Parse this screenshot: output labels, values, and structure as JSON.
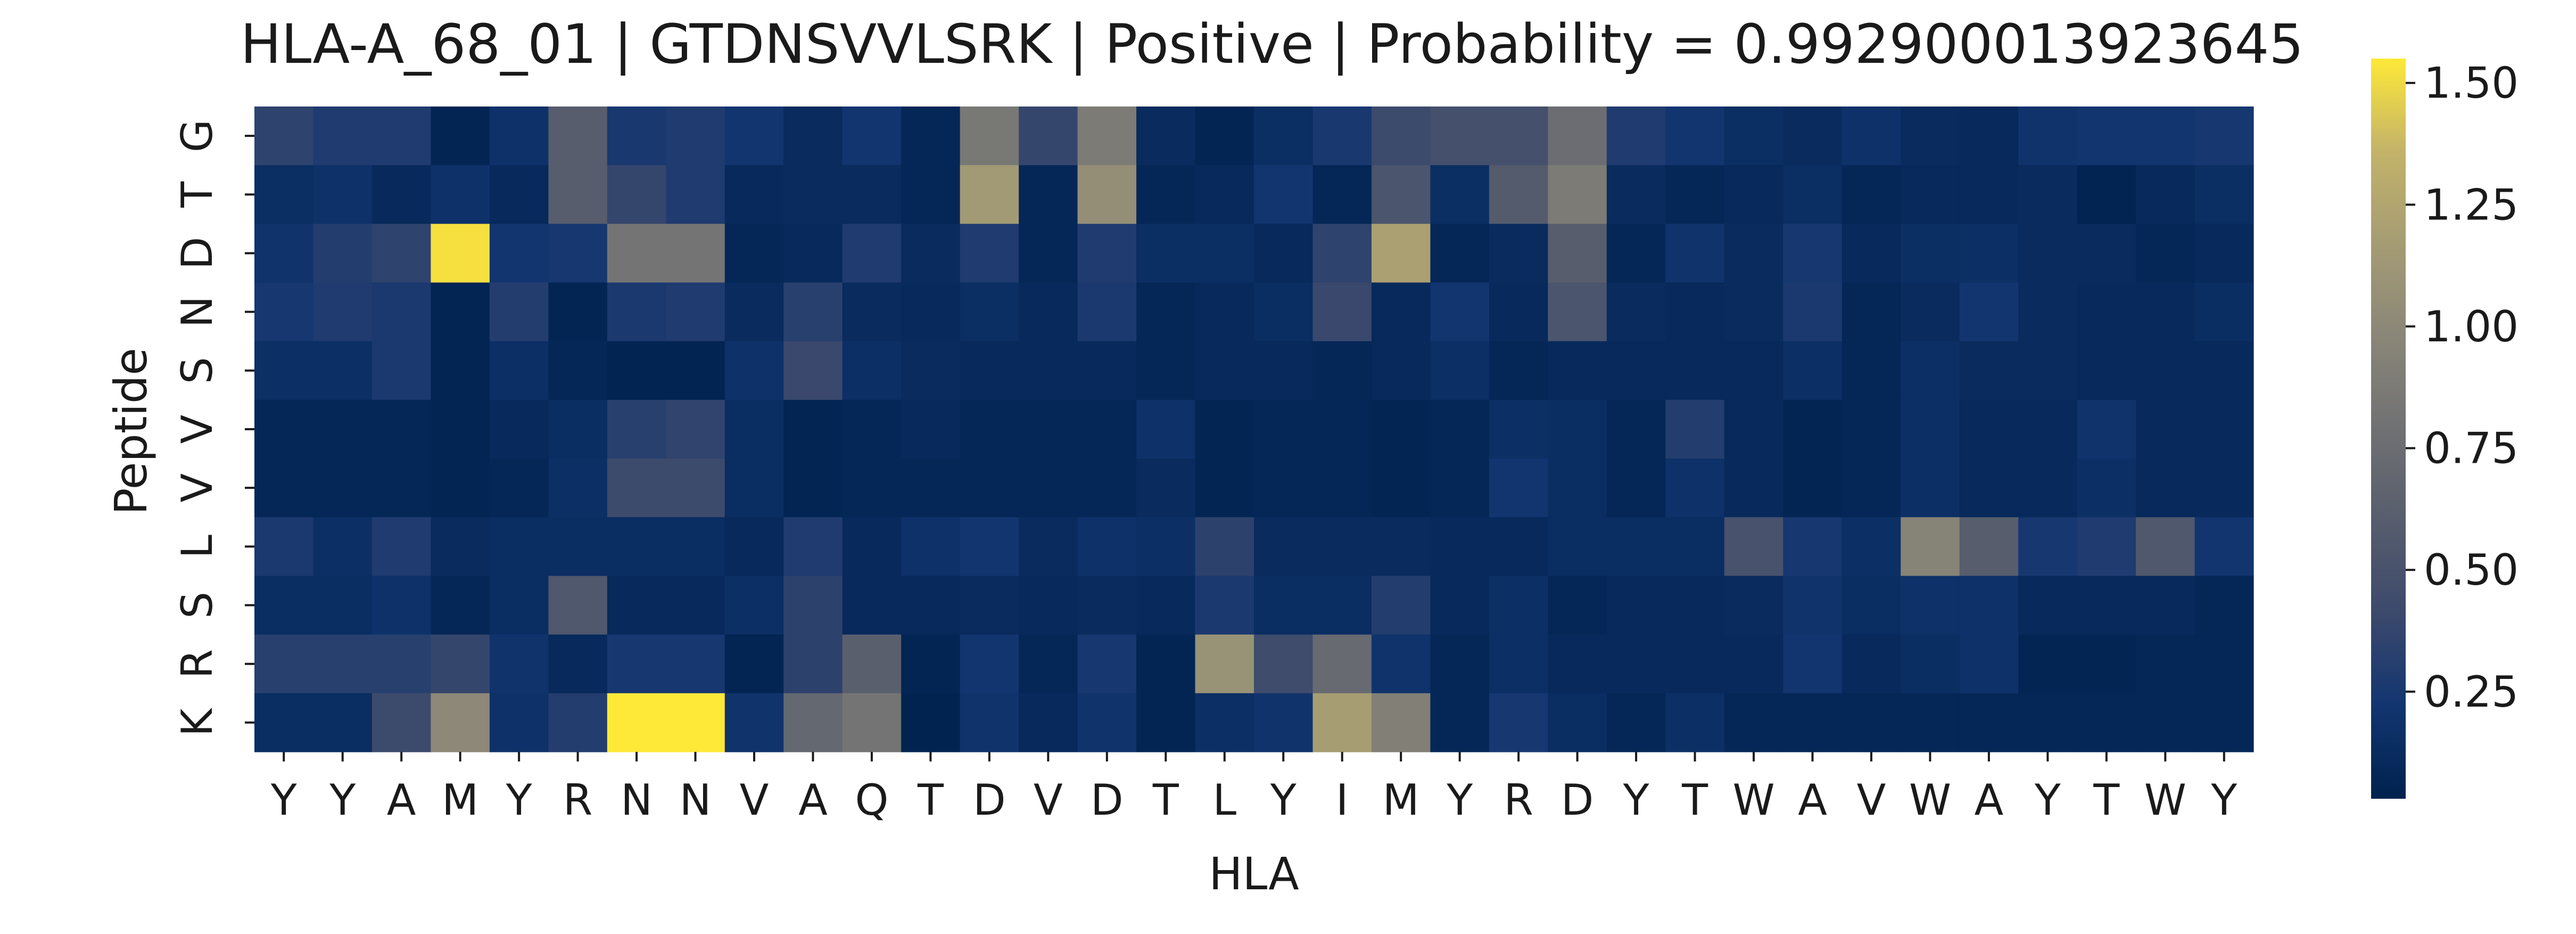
{
  "chart_data": {
    "type": "heatmap",
    "title": "HLA-A_68_01 | GTDNSVVLSRK | Positive | Probability = 0.992900013923645",
    "xlabel": "HLA",
    "ylabel": "Peptide",
    "x_categories": [
      "Y",
      "Y",
      "A",
      "M",
      "Y",
      "R",
      "N",
      "N",
      "V",
      "A",
      "Q",
      "T",
      "D",
      "V",
      "D",
      "T",
      "L",
      "Y",
      "I",
      "M",
      "Y",
      "R",
      "D",
      "Y",
      "T",
      "W",
      "A",
      "V",
      "W",
      "A",
      "Y",
      "T",
      "W",
      "Y"
    ],
    "y_categories": [
      "G",
      "T",
      "D",
      "N",
      "S",
      "V",
      "V",
      "L",
      "S",
      "R",
      "K"
    ],
    "colormap": "cividis",
    "vmin": 0.03,
    "vmax": 1.55,
    "colorbar_ticks": [
      "0.25",
      "0.50",
      "0.75",
      "1.00",
      "1.25",
      "1.50"
    ],
    "values": [
      [
        0.35,
        0.28,
        0.28,
        0.06,
        0.18,
        0.6,
        0.25,
        0.28,
        0.22,
        0.12,
        0.22,
        0.08,
        0.85,
        0.38,
        0.88,
        0.12,
        0.06,
        0.15,
        0.25,
        0.42,
        0.48,
        0.48,
        0.75,
        0.28,
        0.22,
        0.15,
        0.12,
        0.18,
        0.12,
        0.1,
        0.2,
        0.22,
        0.22,
        0.24
      ],
      [
        0.15,
        0.18,
        0.1,
        0.18,
        0.1,
        0.6,
        0.38,
        0.28,
        0.1,
        0.12,
        0.12,
        0.08,
        1.15,
        0.08,
        1.05,
        0.08,
        0.1,
        0.22,
        0.08,
        0.52,
        0.15,
        0.58,
        0.88,
        0.12,
        0.08,
        0.1,
        0.15,
        0.08,
        0.1,
        0.1,
        0.12,
        0.05,
        0.1,
        0.15
      ],
      [
        0.2,
        0.3,
        0.35,
        1.52,
        0.22,
        0.24,
        0.82,
        0.82,
        0.08,
        0.1,
        0.28,
        0.12,
        0.28,
        0.08,
        0.28,
        0.15,
        0.15,
        0.1,
        0.35,
        1.2,
        0.08,
        0.12,
        0.6,
        0.08,
        0.2,
        0.12,
        0.24,
        0.1,
        0.15,
        0.16,
        0.12,
        0.12,
        0.08,
        0.1
      ],
      [
        0.24,
        0.28,
        0.26,
        0.06,
        0.3,
        0.06,
        0.26,
        0.28,
        0.12,
        0.32,
        0.12,
        0.1,
        0.15,
        0.1,
        0.26,
        0.08,
        0.1,
        0.14,
        0.4,
        0.1,
        0.22,
        0.1,
        0.52,
        0.12,
        0.1,
        0.12,
        0.26,
        0.08,
        0.12,
        0.22,
        0.12,
        0.1,
        0.1,
        0.14
      ],
      [
        0.16,
        0.16,
        0.26,
        0.06,
        0.16,
        0.08,
        0.05,
        0.05,
        0.18,
        0.4,
        0.16,
        0.12,
        0.1,
        0.1,
        0.1,
        0.08,
        0.1,
        0.1,
        0.08,
        0.1,
        0.16,
        0.08,
        0.1,
        0.1,
        0.1,
        0.1,
        0.16,
        0.08,
        0.16,
        0.12,
        0.12,
        0.1,
        0.1,
        0.1
      ],
      [
        0.08,
        0.08,
        0.08,
        0.06,
        0.1,
        0.14,
        0.32,
        0.36,
        0.14,
        0.06,
        0.08,
        0.1,
        0.08,
        0.08,
        0.08,
        0.18,
        0.06,
        0.08,
        0.08,
        0.06,
        0.08,
        0.16,
        0.14,
        0.08,
        0.3,
        0.1,
        0.06,
        0.08,
        0.16,
        0.1,
        0.1,
        0.2,
        0.1,
        0.1
      ],
      [
        0.08,
        0.08,
        0.08,
        0.06,
        0.08,
        0.16,
        0.42,
        0.42,
        0.14,
        0.06,
        0.08,
        0.08,
        0.08,
        0.08,
        0.08,
        0.12,
        0.06,
        0.08,
        0.08,
        0.06,
        0.08,
        0.22,
        0.14,
        0.08,
        0.18,
        0.1,
        0.06,
        0.08,
        0.16,
        0.1,
        0.1,
        0.16,
        0.1,
        0.1
      ],
      [
        0.26,
        0.16,
        0.28,
        0.12,
        0.14,
        0.14,
        0.14,
        0.14,
        0.1,
        0.28,
        0.1,
        0.18,
        0.22,
        0.12,
        0.18,
        0.16,
        0.34,
        0.12,
        0.12,
        0.12,
        0.1,
        0.1,
        0.14,
        0.14,
        0.14,
        0.5,
        0.24,
        0.16,
        0.95,
        0.6,
        0.24,
        0.28,
        0.55,
        0.22
      ],
      [
        0.14,
        0.14,
        0.18,
        0.08,
        0.14,
        0.55,
        0.1,
        0.1,
        0.16,
        0.34,
        0.1,
        0.1,
        0.12,
        0.1,
        0.12,
        0.1,
        0.26,
        0.14,
        0.14,
        0.3,
        0.1,
        0.16,
        0.08,
        0.1,
        0.1,
        0.12,
        0.2,
        0.14,
        0.18,
        0.18,
        0.1,
        0.1,
        0.1,
        0.08
      ],
      [
        0.32,
        0.32,
        0.32,
        0.38,
        0.2,
        0.1,
        0.24,
        0.24,
        0.06,
        0.34,
        0.62,
        0.06,
        0.22,
        0.08,
        0.24,
        0.06,
        1.08,
        0.44,
        0.72,
        0.2,
        0.08,
        0.16,
        0.1,
        0.1,
        0.1,
        0.1,
        0.22,
        0.1,
        0.14,
        0.18,
        0.06,
        0.06,
        0.08,
        0.08
      ],
      [
        0.14,
        0.14,
        0.42,
        1.0,
        0.18,
        0.3,
        1.6,
        1.6,
        0.2,
        0.7,
        0.82,
        0.04,
        0.2,
        0.1,
        0.2,
        0.06,
        0.16,
        0.2,
        1.18,
        0.92,
        0.08,
        0.24,
        0.14,
        0.08,
        0.16,
        0.08,
        0.08,
        0.08,
        0.08,
        0.08,
        0.08,
        0.08,
        0.08,
        0.08
      ]
    ]
  }
}
